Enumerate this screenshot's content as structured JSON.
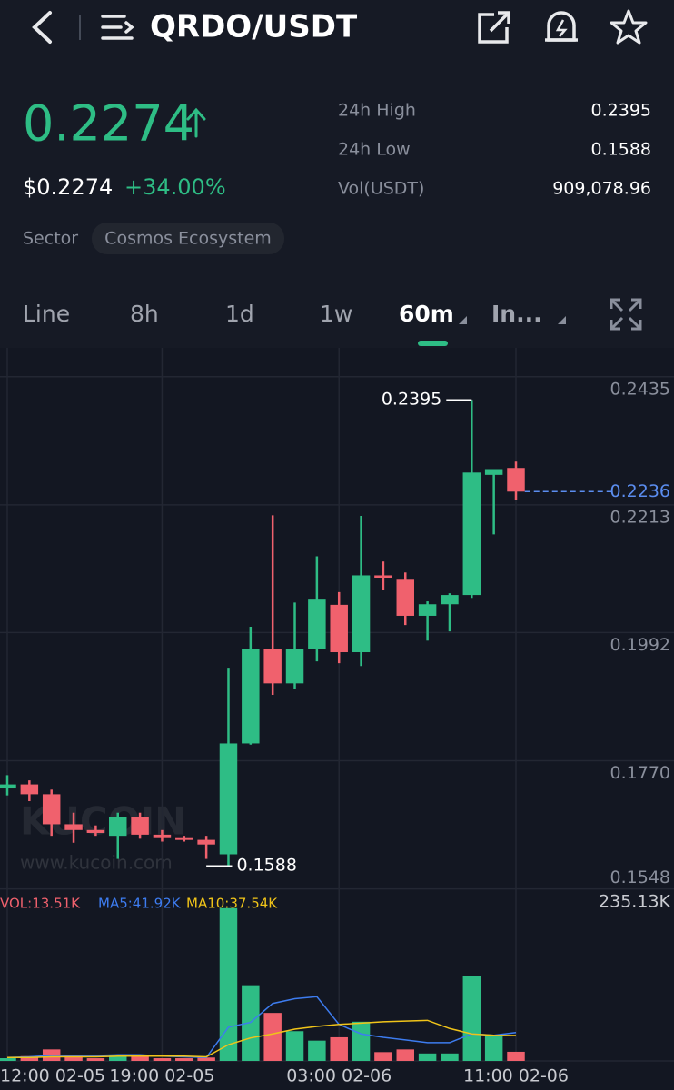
{
  "header": {
    "title": "QRDO/USDT"
  },
  "ticker": {
    "price": "0.2274",
    "price_usd": "$0.2274",
    "change": "+34.00%",
    "stats": [
      {
        "label": "24h High",
        "value": "0.2395"
      },
      {
        "label": "24h Low",
        "value": "0.1588"
      },
      {
        "label": "Vol(USDT)",
        "value": "909,078.96"
      }
    ],
    "sector_label": "Sector",
    "sector": "Cosmos Ecosystem"
  },
  "tabs": [
    "Line",
    "8h",
    "1d",
    "1w",
    "60m",
    "In..."
  ],
  "watermark": {
    "brand": "KUCOIN",
    "url": "www.kucoin.com"
  },
  "chart_data": {
    "type": "candlestick",
    "categories": [
      "12:00 02-05",
      null,
      null,
      null,
      null,
      null,
      null,
      "19:00 02-05",
      null,
      null,
      null,
      null,
      null,
      null,
      null,
      "03:00 02-06",
      null,
      null,
      null,
      null,
      null,
      null,
      null,
      "11:00 02-06"
    ],
    "open": [
      0.1722,
      0.1729,
      0.1712,
      0.166,
      0.165,
      0.164,
      0.1672,
      0.1642,
      0.1636,
      0.1633,
      0.1608,
      0.18,
      0.1964,
      0.1904,
      0.1964,
      0.204,
      0.1958,
      0.2091,
      0.2085,
      0.2021,
      0.2041,
      0.2057,
      0.2265,
      0.2277
    ],
    "high": [
      0.1745,
      0.1736,
      0.172,
      0.168,
      0.1658,
      0.168,
      0.168,
      0.165,
      0.164,
      0.164,
      0.1931,
      0.2002,
      0.2195,
      0.2044,
      0.2124,
      0.2062,
      0.2194,
      0.2115,
      0.2096,
      0.2046,
      0.206,
      0.2395,
      0.2275,
      0.2288
    ],
    "low": [
      0.171,
      0.17,
      0.164,
      0.1628,
      0.164,
      0.16,
      0.1635,
      0.163,
      0.163,
      0.16,
      0.1588,
      0.1798,
      0.1884,
      0.1895,
      0.1942,
      0.1939,
      0.1934,
      0.2065,
      0.2005,
      0.1978,
      0.1994,
      0.2052,
      0.2162,
      0.2222
    ],
    "close": [
      0.1729,
      0.1712,
      0.166,
      0.165,
      0.1645,
      0.1672,
      0.1642,
      0.1636,
      0.1633,
      0.1625,
      0.18,
      0.1964,
      0.1904,
      0.1964,
      0.2049,
      0.1958,
      0.2091,
      0.2087,
      0.2021,
      0.2041,
      0.2057,
      0.2269,
      0.2275,
      0.2236
    ],
    "up_color": "#2ebd85",
    "down_color": "#f0616d",
    "ylim": [
      0.1538,
      0.2485
    ],
    "yticks": [
      0.2435,
      0.2213,
      0.1992,
      {
        "value": 0.177,
        "label": "0.1770"
      },
      0.1548
    ],
    "grid": true,
    "last_price": 0.2236,
    "last_price_color": "#5b8def",
    "high_label": 0.2395,
    "low_label": 0.1588,
    "volume": [
      4,
      7,
      17,
      7,
      4,
      8,
      7,
      4,
      4,
      5,
      226,
      112,
      71,
      44,
      30,
      35,
      58,
      13,
      17,
      11,
      11,
      125,
      38,
      13.51
    ],
    "volume_max": {
      "value": 235.13,
      "label": "235.13K"
    },
    "ma5": [
      5,
      6,
      8,
      8,
      8,
      9,
      9,
      7,
      6,
      5,
      50,
      57,
      85,
      92,
      95,
      54,
      40,
      35,
      31,
      27,
      27,
      40,
      38,
      41.92
    ],
    "ma10": [
      5,
      5,
      6,
      6,
      6,
      7,
      7,
      7,
      7,
      6,
      24,
      34,
      40,
      47,
      51,
      54,
      56,
      58,
      59,
      60,
      48,
      40,
      38,
      37.54
    ],
    "ma5_color": "#3d7cf0",
    "ma10_color": "#f0c419",
    "legend": [
      {
        "name": "VOL:13.51K",
        "color": "#f0616d"
      },
      {
        "name": "MA5:41.92K",
        "color": "#3d7cf0"
      },
      {
        "name": "MA10:37.54K",
        "color": "#f0c419"
      }
    ]
  }
}
